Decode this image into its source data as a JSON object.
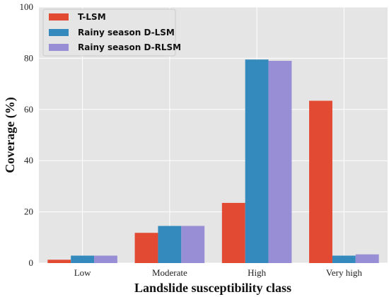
{
  "chart_data": {
    "type": "bar",
    "title": "",
    "xlabel": "Landslide susceptibility class",
    "ylabel": "Coverage (%)",
    "categories": [
      "Low",
      "Moderate",
      "High",
      "Very high"
    ],
    "ylim": [
      0,
      100
    ],
    "yticks": [
      0,
      20,
      40,
      60,
      80,
      100
    ],
    "grid": true,
    "legend_position": "top-left",
    "series": [
      {
        "name": "T-LSM",
        "color": "#e24a33",
        "values": [
          1.3,
          11.8,
          23.5,
          63.4
        ]
      },
      {
        "name": "Rainy season D-LSM",
        "color": "#348abd",
        "values": [
          2.9,
          14.5,
          79.5,
          2.9
        ]
      },
      {
        "name": "Rainy season D-RLSM",
        "color": "#988ed5",
        "values": [
          2.9,
          14.5,
          79.0,
          3.4
        ]
      }
    ]
  }
}
